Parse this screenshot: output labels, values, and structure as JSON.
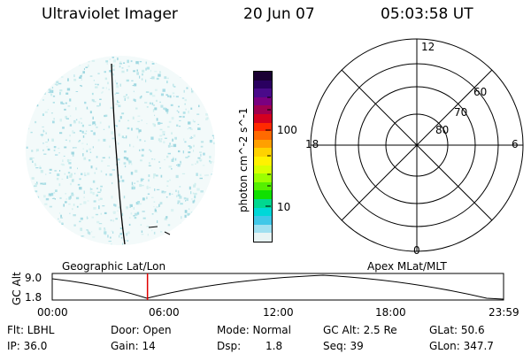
{
  "header": {
    "title": "Ultraviolet Imager",
    "date": "20 Jun 07",
    "time": "05:03:58 UT"
  },
  "colorbar": {
    "label": "photon cm^-2 s^-1",
    "ticks": [
      "100",
      "10"
    ],
    "colors": [
      "#1a0033",
      "#2a0060",
      "#4a0a8a",
      "#7a0080",
      "#a00050",
      "#d40020",
      "#ff2a00",
      "#ff6a00",
      "#ffa000",
      "#ffd200",
      "#fff200",
      "#d8ff00",
      "#9cff00",
      "#55f000",
      "#10e000",
      "#00d890",
      "#00d8d8",
      "#40c8e8",
      "#a0e0f0",
      "#e8f4f4"
    ]
  },
  "polar_plot": {
    "mlt_labels": [
      "12",
      "18",
      "6",
      "0"
    ],
    "lat_labels": [
      "60",
      "70",
      "80"
    ]
  },
  "timeline": {
    "left_title": "Geographic Lat/Lon",
    "right_title": "Apex MLat/MLT",
    "y_label": "GC Alt",
    "y_ticks": [
      "9.0",
      "1.8"
    ],
    "x_ticks": [
      "00:00",
      "06:00",
      "12:00",
      "18:00",
      "23:59"
    ],
    "current_time_fraction": 0.2111
  },
  "info": {
    "flt": "Flt: LBHL",
    "ip": "IP: 36.0",
    "door": "Door: Open",
    "gain": "Gain: 14",
    "mode": "Mode: Normal",
    "dsp_label": "Dsp:",
    "dsp_value": "1.8",
    "gc_alt": "GC Alt: 2.5 Re",
    "seq": "Seq: 39",
    "glat": "GLat:  50.6",
    "glon": "GLon: 347.7"
  }
}
